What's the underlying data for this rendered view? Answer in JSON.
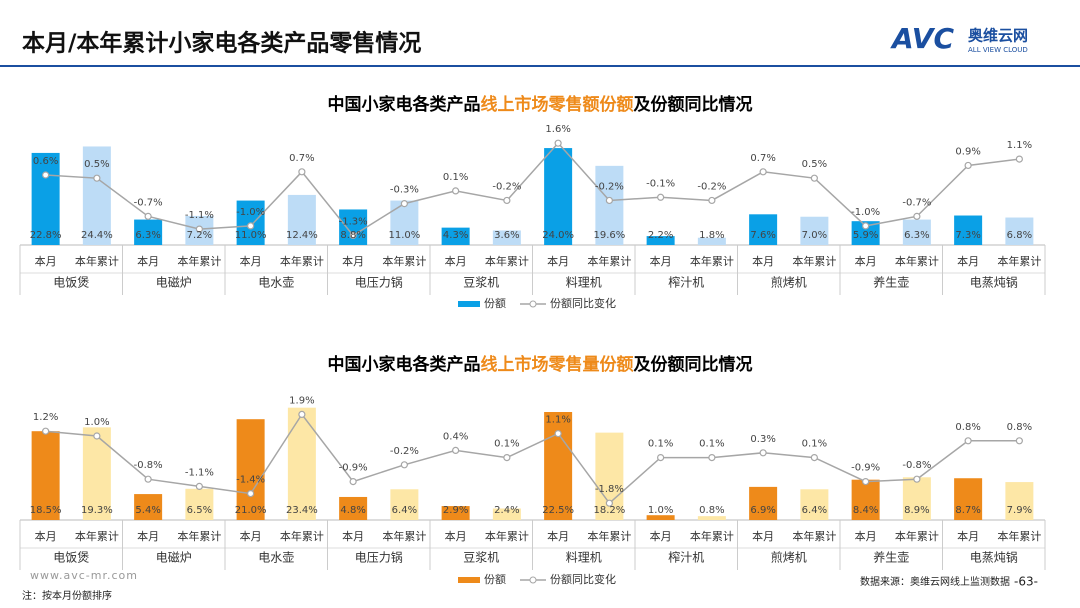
{
  "header": {
    "title": "本月/本年累计小家电各类产品零售情况",
    "logo": "AVC",
    "logo_cn": "奥维云网",
    "logo_en": "ALL VIEW CLOUD"
  },
  "chart_data": [
    {
      "type": "bar-line",
      "title_parts": [
        "中国小家电各类产品",
        "线上市场零售额份额",
        "及份额同比情况"
      ],
      "title_colors": [
        "#000000",
        "#ee8a1a",
        "#000000"
      ],
      "groups": [
        "电饭煲",
        "电磁炉",
        "电水壶",
        "电压力锅",
        "豆浆机",
        "料理机",
        "榨汁机",
        "煎烤机",
        "养生壶",
        "电蒸炖锅"
      ],
      "categories": [
        "本月",
        "本年累计",
        "本月",
        "本年累计",
        "本月",
        "本年累计",
        "本月",
        "本年累计",
        "本月",
        "本年累计",
        "本月",
        "本年累计",
        "本月",
        "本年累计",
        "本月",
        "本年累计",
        "本月",
        "本年累计",
        "本月",
        "本年累计"
      ],
      "ylim": [
        0,
        26
      ],
      "y2lim": [
        -1.6,
        1.7
      ],
      "series": [
        {
          "name": "份额",
          "colors": [
            "#0aa0e6",
            "#bddcf6"
          ],
          "values": [
            22.8,
            24.4,
            6.3,
            7.2,
            11.0,
            12.4,
            8.8,
            11.0,
            4.3,
            3.6,
            24.0,
            19.6,
            2.2,
            1.8,
            7.6,
            7.0,
            5.9,
            6.3,
            7.3,
            6.8
          ],
          "value_labels": [
            "22.8%",
            "24.4%",
            "6.3%",
            "7.2%",
            "11.0%",
            "12.4%",
            "8.8%",
            "11.0%",
            "4.3%",
            "3.6%",
            "24.0%",
            "19.6%",
            "2.2%",
            "1.8%",
            "7.6%",
            "7.0%",
            "5.9%",
            "6.3%",
            "7.3%",
            "6.8%"
          ]
        },
        {
          "name": "份额同比变化",
          "color": "#a6a6a6",
          "axis": "y2",
          "values": [
            0.6,
            0.5,
            -0.7,
            -1.1,
            -1.0,
            0.7,
            -1.3,
            -0.3,
            0.1,
            -0.2,
            1.6,
            -0.2,
            -0.1,
            -0.2,
            0.7,
            0.5,
            -1.0,
            -0.7,
            0.9,
            1.1
          ],
          "value_labels": [
            "0.6%",
            "0.5%",
            "-0.7%",
            "-1.1%",
            "-1.0%",
            "0.7%",
            "-1.3%",
            "-0.3%",
            "0.1%",
            "-0.2%",
            "1.6%",
            "-0.2%",
            "-0.1%",
            "-0.2%",
            "0.7%",
            "0.5%",
            "-1.0%",
            "-0.7%",
            "0.9%",
            "1.1%"
          ]
        }
      ]
    },
    {
      "type": "bar-line",
      "title_parts": [
        "中国小家电各类产品",
        "线上市场零售量份额",
        "及份额同比情况"
      ],
      "title_colors": [
        "#000000",
        "#ee8a1a",
        "#000000"
      ],
      "groups": [
        "电饭煲",
        "电磁炉",
        "电水壶",
        "电压力锅",
        "豆浆机",
        "料理机",
        "榨汁机",
        "煎烤机",
        "养生壶",
        "电蒸炖锅"
      ],
      "categories": [
        "本月",
        "本年累计",
        "本月",
        "本年累计",
        "本月",
        "本年累计",
        "本月",
        "本年累计",
        "本月",
        "本年累计",
        "本月",
        "本年累计",
        "本月",
        "本年累计",
        "本月",
        "本年累计",
        "本月",
        "本年累计",
        "本月",
        "本年累计"
      ],
      "ylim": [
        0,
        25
      ],
      "y2lim": [
        -2.5,
        2.5
      ],
      "series": [
        {
          "name": "份额",
          "colors": [
            "#ee8a1a",
            "#fde7a6"
          ],
          "values": [
            18.5,
            19.3,
            5.4,
            6.5,
            21.0,
            23.4,
            4.8,
            6.4,
            2.9,
            2.4,
            22.5,
            18.2,
            1.0,
            0.8,
            6.9,
            6.4,
            8.4,
            8.9,
            8.7,
            7.9
          ],
          "value_labels": [
            "18.5%",
            "19.3%",
            "5.4%",
            "6.5%",
            "21.0%",
            "23.4%",
            "4.8%",
            "6.4%",
            "2.9%",
            "2.4%",
            "22.5%",
            "18.2%",
            "1.0%",
            "0.8%",
            "6.9%",
            "6.4%",
            "8.4%",
            "8.9%",
            "8.7%",
            "7.9%"
          ]
        },
        {
          "name": "份额同比变化",
          "color": "#a6a6a6",
          "axis": "y2",
          "values": [
            1.2,
            1.0,
            -0.8,
            -1.1,
            -1.4,
            1.9,
            -0.9,
            -0.2,
            0.4,
            0.1,
            1.1,
            -1.8,
            0.1,
            0.1,
            0.3,
            0.1,
            -0.9,
            -0.8,
            0.8,
            0.8
          ],
          "value_labels": [
            "1.2%",
            "1.0%",
            "-0.8%",
            "-1.1%",
            "-1.4%",
            "1.9%",
            "-0.9%",
            "-0.2%",
            "0.4%",
            "0.1%",
            "1.1%",
            "-1.8%",
            "0.1%",
            "0.1%",
            "0.3%",
            "0.1%",
            "-0.9%",
            "-0.8%",
            "0.8%",
            "0.8%"
          ]
        }
      ]
    }
  ],
  "footer": {
    "site": "www.avc-mr.com",
    "note": "注：按本月份额排序",
    "source": "数据来源：奥维云网线上监测数据",
    "page": "-63-"
  }
}
